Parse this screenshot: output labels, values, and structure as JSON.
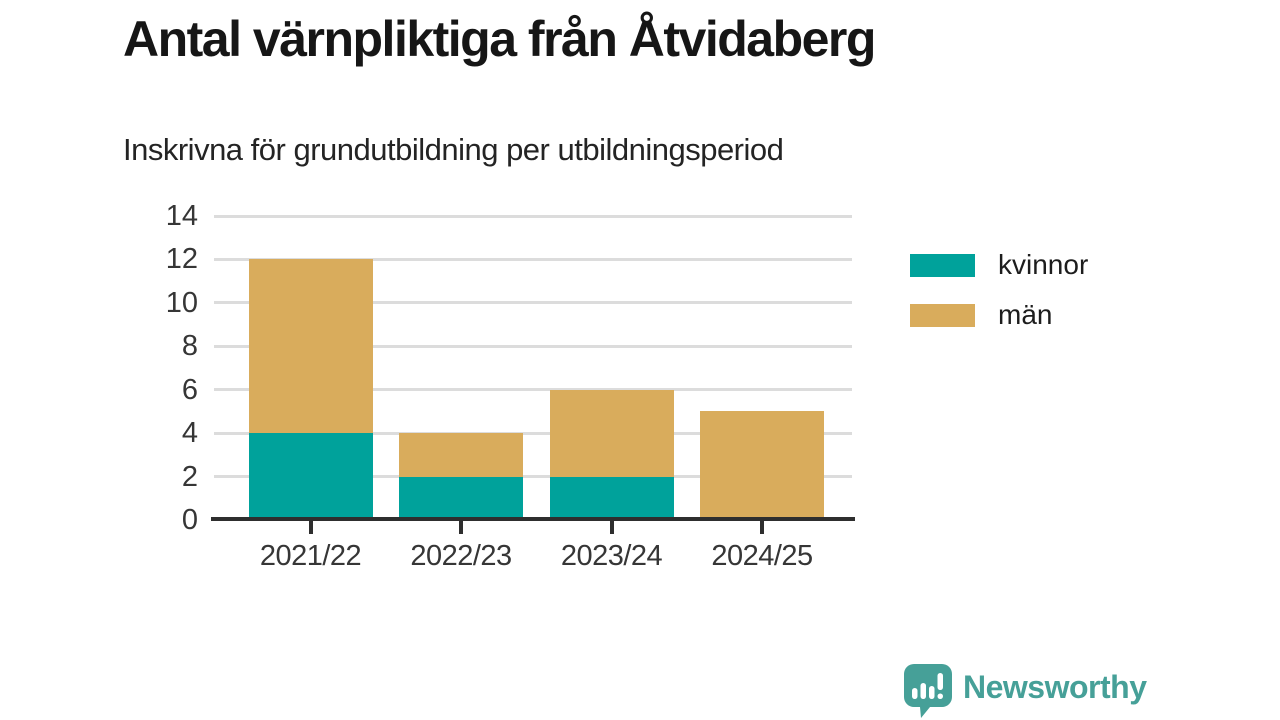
{
  "chart_data": {
    "type": "bar",
    "stacked": true,
    "title": "Antal värnpliktiga från Åtvidaberg",
    "subtitle": "Inskrivna för grundutbildning per utbildningsperiod",
    "categories": [
      "2021/22",
      "2022/23",
      "2023/24",
      "2024/25"
    ],
    "series": [
      {
        "name": "kvinnor",
        "color": "#00a29b",
        "values": [
          4,
          2,
          2,
          0
        ]
      },
      {
        "name": "män",
        "color": "#d9ac5c",
        "values": [
          8,
          2,
          4,
          5
        ]
      }
    ],
    "stack_totals": [
      12,
      4,
      6,
      5
    ],
    "xlabel": "",
    "ylabel": "",
    "ylim": [
      0,
      14
    ],
    "yticks": [
      0,
      2,
      4,
      6,
      8,
      10,
      12,
      14
    ],
    "grid": true,
    "legend_position": "right-top"
  },
  "footer": {
    "brand": "Newsworthy",
    "logo_icon": "newsworthy-speech-bubble-bar-chart-icon",
    "brand_color": "#46a098"
  },
  "colors": {
    "background": "#ffffff",
    "axis": "#2e2e2e",
    "grid": "#dcdcdc",
    "title_text": "#161616",
    "label_text": "#363636",
    "kvinnor": "#00a29b",
    "man": "#d9ac5c"
  }
}
